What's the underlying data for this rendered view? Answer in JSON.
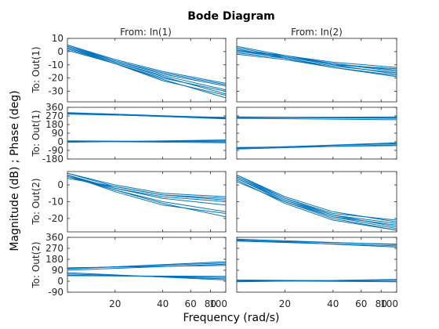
{
  "chart_data": {
    "type": "line",
    "title": "Bode Diagram",
    "xlabel": "Frequency  (rad/s)",
    "ylabel": "Magnitude (dB) ; Phase (deg)",
    "x_scale": "log",
    "xlim": [
      10,
      100
    ],
    "x_ticks": [
      20,
      40,
      60,
      80,
      100
    ],
    "x_tick_labels": [
      "20",
      "40",
      "60",
      "80",
      "100"
    ],
    "line_color": "#0072BD",
    "grid": false,
    "legend": "none",
    "columns": [
      "From: In(1)",
      "From: In(2)"
    ],
    "rows": [
      {
        "label": "To: Out(1)",
        "kind": "magnitude",
        "ylim": [
          -38,
          10
        ],
        "ticks": [
          10,
          0,
          -10,
          -20,
          -30
        ],
        "tick_labels": [
          "10",
          "0",
          "-10",
          "-20",
          "-30"
        ]
      },
      {
        "label": "To: Out(1)",
        "kind": "phase",
        "ylim": [
          -180,
          360
        ],
        "ticks": [
          360,
          270,
          180,
          90,
          0,
          -90,
          -180
        ],
        "tick_labels": [
          "360",
          "270",
          "180",
          "90",
          "0",
          "-90",
          "-180"
        ]
      },
      {
        "label": "To: Out(2)",
        "kind": "magnitude",
        "ylim": [
          -28,
          8
        ],
        "ticks": [
          0,
          -10,
          -20
        ],
        "tick_labels": [
          "0",
          "-10",
          "-20"
        ]
      },
      {
        "label": "To: Out(2)",
        "kind": "phase",
        "ylim": [
          -90,
          360
        ],
        "ticks": [
          360,
          270,
          180,
          90,
          0,
          -90
        ],
        "tick_labels": [
          "360",
          "270",
          "180",
          "90",
          "0",
          "-90"
        ]
      }
    ],
    "panels": [
      {
        "row": 0,
        "col": 0,
        "lines": [
          [
            [
              10,
              5
            ],
            [
              20,
              -7
            ],
            [
              40,
              -17
            ],
            [
              100,
              -26
            ]
          ],
          [
            [
              10,
              4
            ],
            [
              20,
              -8
            ],
            [
              40,
              -18
            ],
            [
              100,
              -29
            ]
          ],
          [
            [
              10,
              3
            ],
            [
              20,
              -8
            ],
            [
              40,
              -19
            ],
            [
              100,
              -32
            ]
          ],
          [
            [
              10,
              2
            ],
            [
              20,
              -9
            ],
            [
              40,
              -21
            ],
            [
              100,
              -35
            ]
          ],
          [
            [
              10,
              5
            ],
            [
              20,
              -6
            ],
            [
              40,
              -15
            ],
            [
              100,
              -24
            ]
          ],
          [
            [
              10,
              1
            ],
            [
              20,
              -9
            ],
            [
              40,
              -20
            ],
            [
              100,
              -30
            ]
          ],
          [
            [
              10,
              4
            ],
            [
              20,
              -7
            ],
            [
              40,
              -16
            ],
            [
              100,
              -25
            ]
          ],
          [
            [
              10,
              3
            ],
            [
              20,
              -9
            ],
            [
              40,
              -22
            ],
            [
              100,
              -33
            ]
          ]
        ]
      },
      {
        "row": 0,
        "col": 1,
        "lines": [
          [
            [
              10,
              3
            ],
            [
              20,
              -4
            ],
            [
              40,
              -10
            ],
            [
              100,
              -17
            ]
          ],
          [
            [
              10,
              2
            ],
            [
              20,
              -5
            ],
            [
              40,
              -12
            ],
            [
              100,
              -19
            ]
          ],
          [
            [
              10,
              1
            ],
            [
              20,
              -3
            ],
            [
              40,
              -8
            ],
            [
              100,
              -12
            ]
          ],
          [
            [
              10,
              0
            ],
            [
              20,
              -4
            ],
            [
              40,
              -9
            ],
            [
              100,
              -14
            ]
          ],
          [
            [
              10,
              -1
            ],
            [
              20,
              -5
            ],
            [
              40,
              -11
            ],
            [
              100,
              -16
            ]
          ],
          [
            [
              10,
              4
            ],
            [
              20,
              -3
            ],
            [
              40,
              -9
            ],
            [
              100,
              -15
            ]
          ],
          [
            [
              10,
              -2
            ],
            [
              20,
              -6
            ],
            [
              40,
              -12
            ],
            [
              100,
              -18
            ]
          ],
          [
            [
              10,
              1
            ],
            [
              20,
              -4
            ],
            [
              40,
              -10
            ],
            [
              100,
              -13
            ]
          ]
        ]
      },
      {
        "row": 1,
        "col": 0,
        "lines": [
          [
            [
              10,
              300
            ],
            [
              100,
              240
            ]
          ],
          [
            [
              10,
              295
            ],
            [
              100,
              245
            ]
          ],
          [
            [
              10,
              305
            ],
            [
              100,
              250
            ]
          ],
          [
            [
              10,
              290
            ],
            [
              100,
              255
            ]
          ],
          [
            [
              10,
              0
            ],
            [
              100,
              10
            ]
          ],
          [
            [
              10,
              5
            ],
            [
              100,
              -10
            ]
          ],
          [
            [
              10,
              -5
            ],
            [
              100,
              20
            ]
          ],
          [
            [
              10,
              10
            ],
            [
              100,
              0
            ]
          ]
        ]
      },
      {
        "row": 1,
        "col": 1,
        "lines": [
          [
            [
              10,
              250
            ],
            [
              100,
              260
            ]
          ],
          [
            [
              10,
              255
            ],
            [
              100,
              245
            ]
          ],
          [
            [
              10,
              245
            ],
            [
              100,
              230
            ]
          ],
          [
            [
              10,
              260
            ],
            [
              100,
              250
            ]
          ],
          [
            [
              10,
              -70
            ],
            [
              100,
              -10
            ]
          ],
          [
            [
              10,
              -65
            ],
            [
              100,
              -20
            ]
          ],
          [
            [
              10,
              -75
            ],
            [
              100,
              -30
            ]
          ],
          [
            [
              10,
              -60
            ],
            [
              100,
              -40
            ]
          ]
        ]
      },
      {
        "row": 2,
        "col": 0,
        "lines": [
          [
            [
              10,
              7
            ],
            [
              20,
              -1
            ],
            [
              40,
              -6
            ],
            [
              100,
              -8
            ]
          ],
          [
            [
              10,
              6
            ],
            [
              20,
              -2
            ],
            [
              40,
              -8
            ],
            [
              100,
              -12
            ]
          ],
          [
            [
              10,
              5
            ],
            [
              20,
              -3
            ],
            [
              40,
              -10
            ],
            [
              100,
              -16
            ]
          ],
          [
            [
              10,
              6
            ],
            [
              20,
              -3
            ],
            [
              40,
              -11
            ],
            [
              100,
              -19
            ]
          ],
          [
            [
              10,
              7
            ],
            [
              20,
              0
            ],
            [
              40,
              -5
            ],
            [
              100,
              -7
            ]
          ],
          [
            [
              10,
              5
            ],
            [
              20,
              -2
            ],
            [
              40,
              -7
            ],
            [
              100,
              -10
            ]
          ],
          [
            [
              10,
              6
            ],
            [
              20,
              -4
            ],
            [
              40,
              -12
            ],
            [
              100,
              -17
            ]
          ],
          [
            [
              10,
              4
            ],
            [
              20,
              -1
            ],
            [
              40,
              -6
            ],
            [
              100,
              -9
            ]
          ]
        ]
      },
      {
        "row": 2,
        "col": 1,
        "lines": [
          [
            [
              10,
              6
            ],
            [
              20,
              -8
            ],
            [
              40,
              -18
            ],
            [
              100,
              -25
            ]
          ],
          [
            [
              10,
              5
            ],
            [
              20,
              -9
            ],
            [
              40,
              -19
            ],
            [
              100,
              -26
            ]
          ],
          [
            [
              10,
              4
            ],
            [
              20,
              -10
            ],
            [
              40,
              -20
            ],
            [
              100,
              -27
            ]
          ],
          [
            [
              10,
              3
            ],
            [
              20,
              -11
            ],
            [
              40,
              -21
            ],
            [
              100,
              -27
            ]
          ],
          [
            [
              10,
              2
            ],
            [
              20,
              -10
            ],
            [
              40,
              -19
            ],
            [
              100,
              -24
            ]
          ],
          [
            [
              10,
              6
            ],
            [
              20,
              -7
            ],
            [
              40,
              -16
            ],
            [
              100,
              -22
            ]
          ],
          [
            [
              10,
              4
            ],
            [
              20,
              -9
            ],
            [
              40,
              -18
            ],
            [
              100,
              -23
            ]
          ],
          [
            [
              10,
              5
            ],
            [
              20,
              -8
            ],
            [
              40,
              -17
            ],
            [
              100,
              -21
            ]
          ]
        ]
      },
      {
        "row": 3,
        "col": 0,
        "lines": [
          [
            [
              10,
              100
            ],
            [
              100,
              160
            ]
          ],
          [
            [
              10,
              90
            ],
            [
              100,
              140
            ]
          ],
          [
            [
              10,
              110
            ],
            [
              100,
              130
            ]
          ],
          [
            [
              10,
              105
            ],
            [
              100,
              150
            ]
          ],
          [
            [
              10,
              60
            ],
            [
              100,
              20
            ]
          ],
          [
            [
              10,
              50
            ],
            [
              100,
              30
            ]
          ],
          [
            [
              10,
              70
            ],
            [
              100,
              10
            ]
          ],
          [
            [
              10,
              45
            ],
            [
              100,
              40
            ]
          ]
        ]
      },
      {
        "row": 3,
        "col": 1,
        "lines": [
          [
            [
              10,
              330
            ],
            [
              100,
              290
            ]
          ],
          [
            [
              10,
              340
            ],
            [
              100,
              280
            ]
          ],
          [
            [
              10,
              335
            ],
            [
              100,
              305
            ]
          ],
          [
            [
              10,
              345
            ],
            [
              100,
              300
            ]
          ],
          [
            [
              10,
              0
            ],
            [
              100,
              10
            ]
          ],
          [
            [
              10,
              5
            ],
            [
              100,
              -5
            ]
          ],
          [
            [
              10,
              -5
            ],
            [
              100,
              15
            ]
          ],
          [
            [
              10,
              10
            ],
            [
              100,
              0
            ]
          ]
        ]
      }
    ]
  }
}
